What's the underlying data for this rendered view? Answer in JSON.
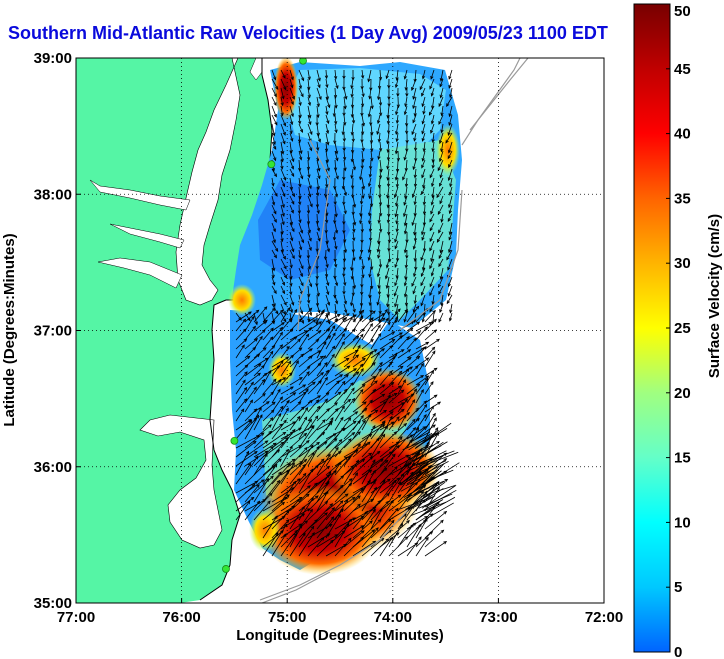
{
  "title": "Southern Mid-Atlantic Raw Velocities (1 Day Avg) 2009/05/23 1100 EDT",
  "map": {
    "x_axis": {
      "label": "Longitude (Degrees:Minutes)",
      "range": [
        -77,
        -72
      ],
      "ticks": [
        {
          "value": -77,
          "label": "77:00"
        },
        {
          "value": -76,
          "label": "76:00"
        },
        {
          "value": -75,
          "label": "75:00"
        },
        {
          "value": -74,
          "label": "74:00"
        },
        {
          "value": -73,
          "label": "73:00"
        },
        {
          "value": -72,
          "label": "72:00"
        }
      ]
    },
    "y_axis": {
      "label": "Latitude (Degrees:Minutes)",
      "range": [
        35,
        39
      ],
      "ticks": [
        {
          "value": 35,
          "label": "35:00"
        },
        {
          "value": 36,
          "label": "36:00"
        },
        {
          "value": 37,
          "label": "37:00"
        },
        {
          "value": 38,
          "label": "38:00"
        },
        {
          "value": 39,
          "label": "39:00"
        }
      ]
    },
    "grid": "dotted",
    "land_color": "#55f5a5",
    "water_color": "#ffffff",
    "bathymetry_color": "#9a9a9a",
    "site_marker_color": "#33e633",
    "sites": [
      {
        "lon": -74.85,
        "lat": 38.98
      },
      {
        "lon": -75.15,
        "lat": 38.22
      },
      {
        "lon": -75.5,
        "lat": 36.19
      },
      {
        "lon": -75.58,
        "lat": 35.25
      }
    ]
  },
  "colorbar": {
    "label": "Surface Velocity (cm/s)",
    "range": [
      0,
      50
    ],
    "unit": "cm/s",
    "ticks": [
      {
        "value": 0,
        "label": "0"
      },
      {
        "value": 5,
        "label": "5"
      },
      {
        "value": 10,
        "label": "10"
      },
      {
        "value": 15,
        "label": "15"
      },
      {
        "value": 20,
        "label": "20"
      },
      {
        "value": 25,
        "label": "25"
      },
      {
        "value": 30,
        "label": "30"
      },
      {
        "value": 35,
        "label": "35"
      },
      {
        "value": 40,
        "label": "40"
      },
      {
        "value": 45,
        "label": "45"
      },
      {
        "value": 50,
        "label": "50"
      }
    ],
    "colormap": [
      "#0064ff",
      "#00c8ff",
      "#00ffff",
      "#64ffc8",
      "#c8ff64",
      "#ffff00",
      "#ffaa00",
      "#ff5a00",
      "#ff0000",
      "#c80000",
      "#780000"
    ]
  }
}
